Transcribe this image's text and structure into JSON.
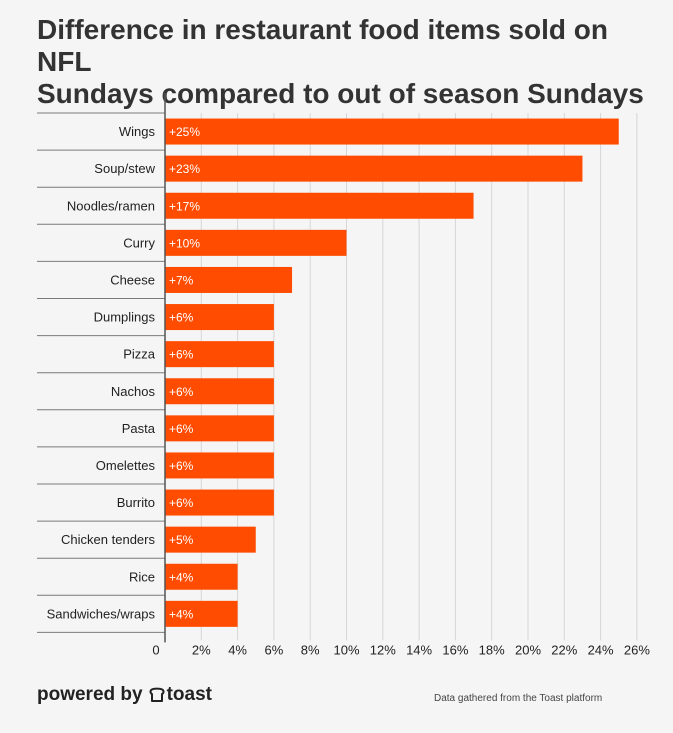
{
  "header": {
    "title_line1": "Difference in restaurant food items sold on NFL",
    "title_line2": "Sundays compared to out of season Sundays"
  },
  "chart_data": {
    "type": "bar",
    "orientation": "horizontal",
    "title": "Difference in restaurant food items sold on NFL Sundays compared to out of season Sundays",
    "xlabel": "",
    "ylabel": "",
    "categories": [
      "Wings",
      "Soup/stew",
      "Noodles/ramen",
      "Curry",
      "Cheese",
      "Dumplings",
      "Pizza",
      "Nachos",
      "Pasta",
      "Omelettes",
      "Burrito",
      "Chicken tenders",
      "Rice",
      "Sandwiches/wraps"
    ],
    "values": [
      25,
      23,
      17,
      10,
      7,
      6,
      6,
      6,
      6,
      6,
      6,
      5,
      4,
      4
    ],
    "data_labels": [
      "+25%",
      "+23%",
      "+17%",
      "+10%",
      "+7%",
      "+6%",
      "+6%",
      "+6%",
      "+6%",
      "+6%",
      "+6%",
      "+5%",
      "+4%",
      "+4%"
    ],
    "xlim": [
      0,
      26
    ],
    "ticks": [
      0,
      2,
      4,
      6,
      8,
      10,
      12,
      14,
      16,
      18,
      20,
      22,
      24,
      26
    ],
    "tick_labels": [
      "0",
      "2%",
      "4%",
      "6%",
      "8%",
      "10%",
      "12%",
      "14%",
      "16%",
      "18%",
      "20%",
      "22%",
      "24%",
      "26%"
    ],
    "grid": true,
    "bar_color": "#ff4c00"
  },
  "footer": {
    "powered_by": "powered by",
    "brand": "toast",
    "source_note": "Data gathered from the Toast platform"
  }
}
